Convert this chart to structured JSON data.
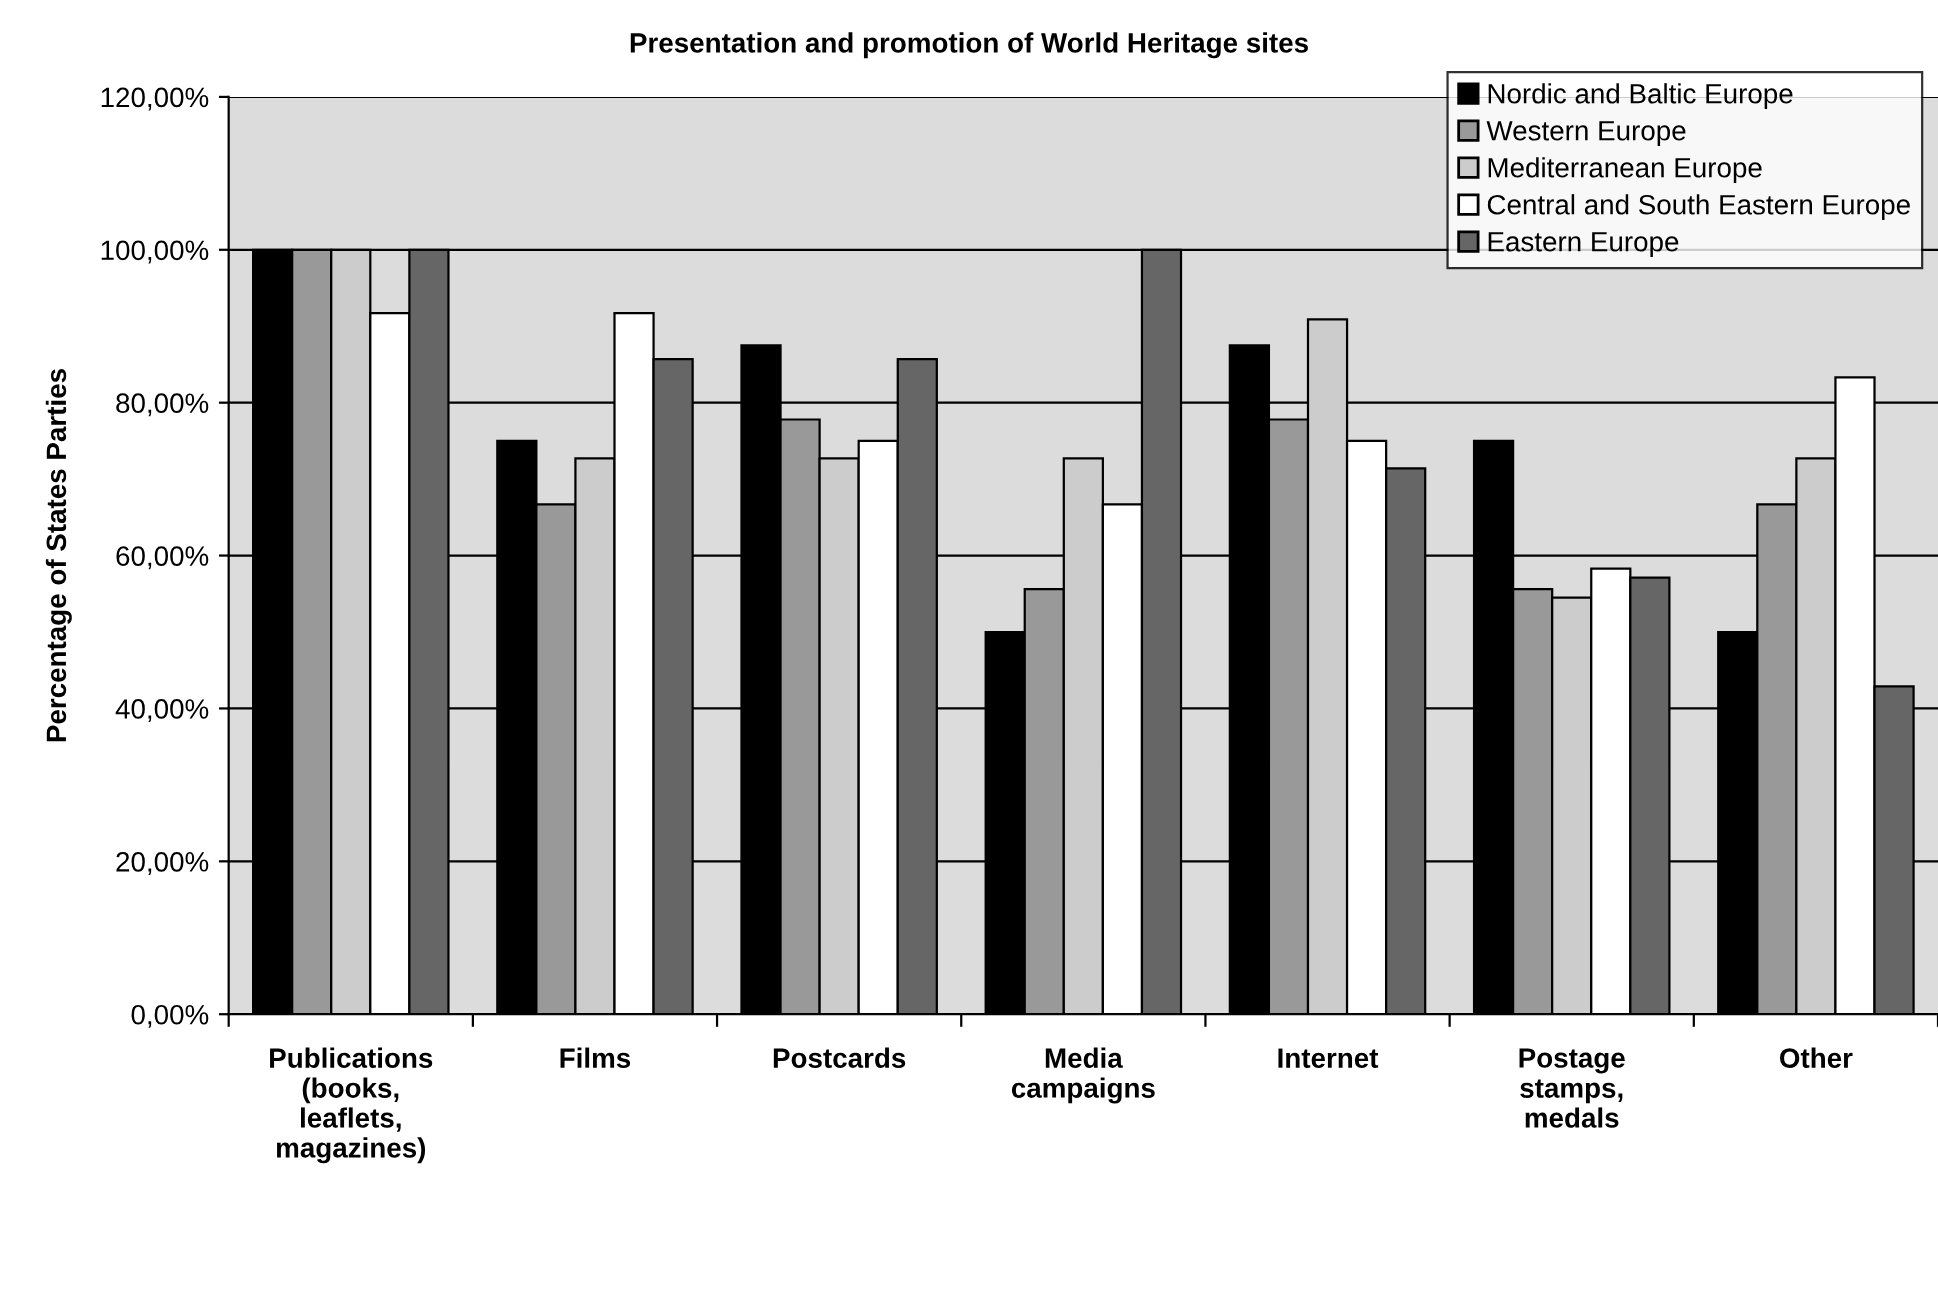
{
  "chart_data": {
    "type": "bar",
    "title": "Presentation and promotion of World Heritage sites",
    "ylabel": "Percentage of States Parties",
    "categories": [
      "Publications\n(books,\nleaflets,\nmagazines)",
      "Films",
      "Postcards",
      "Media\ncampaigns",
      "Internet",
      "Postage\nstamps,\nmedals",
      "Other"
    ],
    "series": [
      {
        "name": "Nordic and Baltic Europe",
        "color": "#000000",
        "values": [
          100,
          75,
          87.5,
          50,
          87.5,
          75,
          50
        ]
      },
      {
        "name": "Western Europe",
        "color": "#999999",
        "values": [
          100,
          66.7,
          77.8,
          55.6,
          77.8,
          55.6,
          66.7
        ]
      },
      {
        "name": "Mediterranean Europe",
        "color": "#cccccc",
        "values": [
          100,
          72.7,
          72.7,
          72.7,
          90.9,
          54.5,
          72.7
        ]
      },
      {
        "name": "Central and South Eastern Europe",
        "color": "#ffffff",
        "values": [
          91.7,
          91.7,
          75,
          66.7,
          75,
          58.3,
          83.3
        ]
      },
      {
        "name": "Eastern Europe",
        "color": "#666666",
        "values": [
          100,
          85.7,
          85.7,
          100,
          71.4,
          57.1,
          42.9
        ]
      }
    ],
    "ylim": [
      0,
      120
    ],
    "yticks": [
      {
        "value": 0,
        "label": "0,00%"
      },
      {
        "value": 20,
        "label": "20,00%"
      },
      {
        "value": 40,
        "label": "40,00%"
      },
      {
        "value": 60,
        "label": "60,00%"
      },
      {
        "value": 80,
        "label": "80,00%"
      },
      {
        "value": 100,
        "label": "100,00%"
      },
      {
        "value": 120,
        "label": "120,00%"
      }
    ],
    "grid": "y",
    "legend": "top right"
  }
}
